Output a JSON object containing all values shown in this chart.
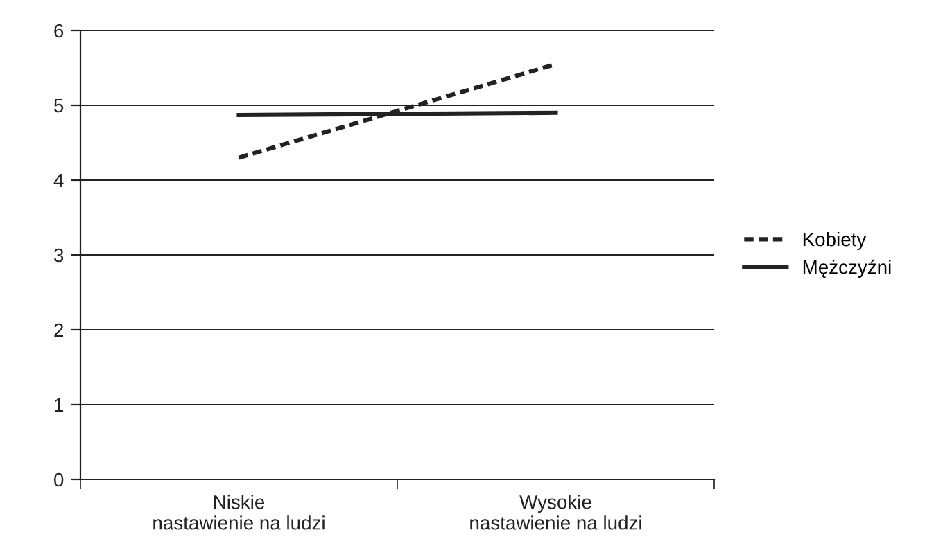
{
  "chart_data": {
    "type": "line",
    "categories": [
      "Niskie\nnastawienie na ludzi",
      "Wysokie\nnastawienie na ludzi"
    ],
    "series": [
      {
        "name": "Kobiety",
        "color": "#222222",
        "values": [
          4.3,
          5.55
        ],
        "line_style": "dashed"
      },
      {
        "name": "Mężczyźni",
        "color": "#222222",
        "values": [
          4.87,
          4.9
        ],
        "line_style": "solid"
      }
    ],
    "ylim": [
      0,
      6
    ],
    "yticks": [
      0,
      1,
      2,
      3,
      4,
      5,
      6
    ],
    "grid": "y",
    "legend": "right",
    "marker": "none"
  }
}
